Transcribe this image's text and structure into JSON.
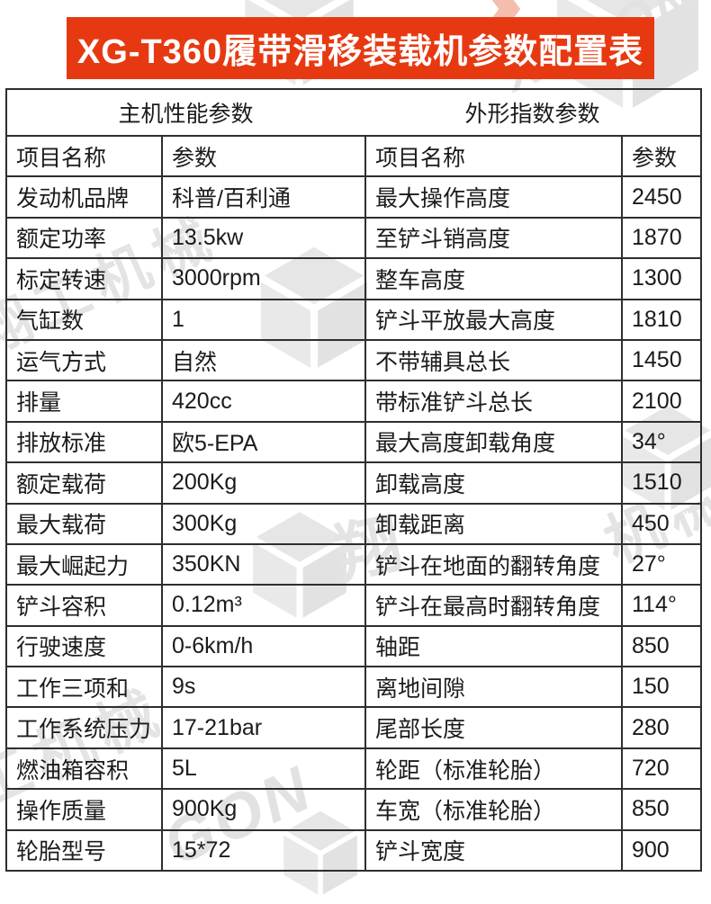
{
  "banner": {
    "title": "XG-T360履带滑移装载机参数配置表",
    "bg_color": "#e73911"
  },
  "sections": {
    "left": "主机性能参数",
    "right": "外形指数参数"
  },
  "columns": {
    "name": "项目名称",
    "value": "参数"
  },
  "left_rows": [
    {
      "name": "发动机品牌",
      "value": "科普/百利通"
    },
    {
      "name": "额定功率",
      "value": "13.5kw"
    },
    {
      "name": "标定转速",
      "value": "3000rpm"
    },
    {
      "name": "气缸数",
      "value": "1"
    },
    {
      "name": "运气方式",
      "value": "自然"
    },
    {
      "name": "排量",
      "value": "420cc"
    },
    {
      "name": "排放标准",
      "value": "欧5-EPA"
    },
    {
      "name": "额定载荷",
      "value": "200Kg"
    },
    {
      "name": "最大载荷",
      "value": "300Kg"
    },
    {
      "name": "最大崛起力",
      "value": "350KN"
    },
    {
      "name": "铲斗容积",
      "value": "0.12m³"
    },
    {
      "name": "行驶速度",
      "value": "0-6km/h"
    },
    {
      "name": "工作三项和",
      "value": "9s"
    },
    {
      "name": "工作系统压力",
      "value": "17-21bar"
    },
    {
      "name": "燃油箱容积",
      "value": "5L"
    },
    {
      "name": "操作质量",
      "value": "900Kg"
    },
    {
      "name": "轮胎型号",
      "value": "15*72"
    }
  ],
  "right_rows": [
    {
      "name": "最大操作高度",
      "value": "2450"
    },
    {
      "name": "至铲斗销高度",
      "value": "1870"
    },
    {
      "name": "整车高度",
      "value": "1300"
    },
    {
      "name": "铲斗平放最大高度",
      "value": "1810"
    },
    {
      "name": "不带辅具总长",
      "value": "1450"
    },
    {
      "name": "带标准铲斗总长",
      "value": "2100"
    },
    {
      "name": "最大高度卸载角度",
      "value": "34°"
    },
    {
      "name": "卸载高度",
      "value": "1510"
    },
    {
      "name": "卸载距离",
      "value": "450"
    },
    {
      "name": "铲斗在地面的翻转角度",
      "value": "27°"
    },
    {
      "name": "铲斗在最高时翻转角度",
      "value": "114°"
    },
    {
      "name": "轴距",
      "value": "850"
    },
    {
      "name": "离地间隙",
      "value": "150"
    },
    {
      "name": "尾部长度",
      "value": "280"
    },
    {
      "name": "轮距（标准轮胎）",
      "value": "720"
    },
    {
      "name": "车宽（标准轮胎）",
      "value": "850"
    },
    {
      "name": "铲斗宽度",
      "value": "900"
    }
  ],
  "watermark": {
    "brand_cn": "翔工机械",
    "brand_cn_partial": "工机械",
    "brand_cn_char": "翔",
    "brand_cn_char2": "机械",
    "brand_en": "XAGON",
    "brand_en_partial": "GON",
    "color": "#e3e3e3"
  }
}
